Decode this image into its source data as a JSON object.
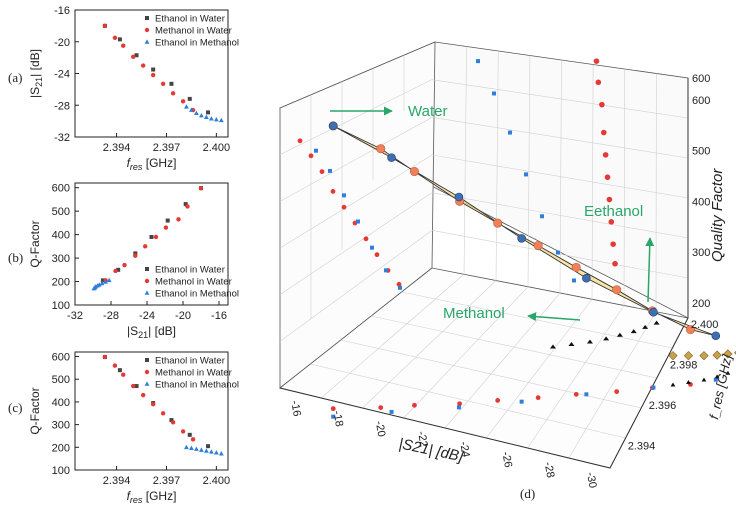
{
  "chart_data": [
    {
      "panel": "(a)",
      "type": "scatter",
      "xlabel": "f_res [GHz]",
      "ylabel": "|S21| [dB]",
      "xlim": [
        2.3915,
        2.4007
      ],
      "ylim": [
        -32,
        -16
      ],
      "xticks": [
        "2.394",
        "2.397",
        "2.400"
      ],
      "yticks": [
        "-16",
        "-20",
        "-24",
        "-28",
        "-32"
      ],
      "legend_position": "top-right",
      "series": [
        {
          "name": "Ethanol in Water",
          "color": "#444444",
          "x": [
            2.3933,
            2.3942,
            2.3952,
            2.3962,
            2.3973,
            2.3984,
            2.3995
          ],
          "y": [
            -18.0,
            -19.7,
            -21.7,
            -23.5,
            -25.3,
            -27.2,
            -28.9
          ]
        },
        {
          "name": "Methanol in Water",
          "color": "#e53935",
          "x": [
            2.3933,
            2.3939,
            2.3944,
            2.395,
            2.3956,
            2.3962,
            2.3968,
            2.3974,
            2.398,
            2.3986
          ],
          "y": [
            -18.0,
            -19.5,
            -20.5,
            -21.9,
            -23.0,
            -24.2,
            -25.3,
            -26.5,
            -27.5,
            -28.6
          ]
        },
        {
          "name": "Ethanol in Methanol",
          "color": "#2f7fd8",
          "x": [
            2.3982,
            2.3985,
            2.3988,
            2.3991,
            2.3994,
            2.3997,
            2.4,
            2.4003
          ],
          "y": [
            -28.2,
            -28.6,
            -29.0,
            -29.3,
            -29.5,
            -29.7,
            -29.8,
            -29.9
          ]
        }
      ]
    },
    {
      "panel": "(b)",
      "type": "scatter",
      "xlabel": "|S21| [dB]",
      "ylabel": "Q-Factor",
      "xlim": [
        -32,
        -15
      ],
      "ylim": [
        100,
        620
      ],
      "xticks": [
        "-32",
        "-28",
        "-24",
        "-20",
        "-16"
      ],
      "yticks": [
        "100",
        "200",
        "300",
        "400",
        "500",
        "600"
      ],
      "legend_position": "bottom-right",
      "series": [
        {
          "name": "Ethanol in Water",
          "color": "#444444",
          "x": [
            -28.9,
            -27.2,
            -25.3,
            -23.5,
            -21.7,
            -19.7,
            -18.0
          ],
          "y": [
            205,
            250,
            320,
            390,
            460,
            530,
            598
          ]
        },
        {
          "name": "Methanol in Water",
          "color": "#e53935",
          "x": [
            -28.6,
            -27.5,
            -26.5,
            -25.3,
            -24.2,
            -23.0,
            -21.9,
            -20.5,
            -19.5,
            -18.0
          ],
          "y": [
            205,
            245,
            270,
            310,
            350,
            390,
            430,
            465,
            520,
            598
          ]
        },
        {
          "name": "Ethanol in Methanol",
          "color": "#2f7fd8",
          "x": [
            -29.9,
            -29.8,
            -29.7,
            -29.5,
            -29.3,
            -29.0,
            -28.6,
            -28.2
          ],
          "y": [
            170,
            174,
            178,
            182,
            186,
            192,
            198,
            205
          ]
        }
      ]
    },
    {
      "panel": "(c)",
      "type": "scatter",
      "xlabel": "f_res [GHz]",
      "ylabel": "Q-Factor",
      "xlim": [
        2.3915,
        2.4007
      ],
      "ylim": [
        100,
        620
      ],
      "xticks": [
        "2.394",
        "2.397",
        "2.400"
      ],
      "yticks": [
        "100",
        "200",
        "300",
        "400",
        "500",
        "600"
      ],
      "legend_position": "top-right",
      "series": [
        {
          "name": "Ethanol in Water",
          "color": "#444444",
          "x": [
            2.3933,
            2.3942,
            2.3952,
            2.3962,
            2.3973,
            2.3984,
            2.3995
          ],
          "y": [
            598,
            540,
            470,
            395,
            320,
            255,
            205
          ]
        },
        {
          "name": "Methanol in Water",
          "color": "#e53935",
          "x": [
            2.3933,
            2.3939,
            2.3944,
            2.395,
            2.3956,
            2.3962,
            2.3968,
            2.3974,
            2.398,
            2.3986
          ],
          "y": [
            598,
            560,
            520,
            470,
            430,
            390,
            350,
            310,
            270,
            235
          ]
        },
        {
          "name": "Ethanol in Methanol",
          "color": "#2f7fd8",
          "x": [
            2.3982,
            2.3985,
            2.3988,
            2.3991,
            2.3994,
            2.3997,
            2.4,
            2.4003
          ],
          "y": [
            200,
            196,
            192,
            188,
            184,
            180,
            176,
            172
          ]
        }
      ]
    },
    {
      "panel": "(d)",
      "type": "scatter",
      "projection": "3d",
      "xlabel": "|S21| [dB]",
      "ylabel": "f_res [GHz]",
      "zlabel": "Quality Factor",
      "xticks": [
        "-16",
        "-18",
        "-20",
        "-22",
        "-24",
        "-26",
        "-28",
        "-30"
      ],
      "yticks": [
        "2.394",
        "2.396",
        "2.398",
        "2.400"
      ],
      "zticks": [
        "200",
        "300",
        "400",
        "500",
        "600"
      ],
      "grid": true,
      "annotations": [
        "Water",
        "Eethanol",
        "Methanol"
      ]
    }
  ],
  "legend_labels": [
    "Ethanol in Water",
    "Methanol in Water",
    "Ethanol in Methanol"
  ],
  "panel_labels": [
    "(a)",
    "(b)",
    "(c)",
    "(d)"
  ]
}
